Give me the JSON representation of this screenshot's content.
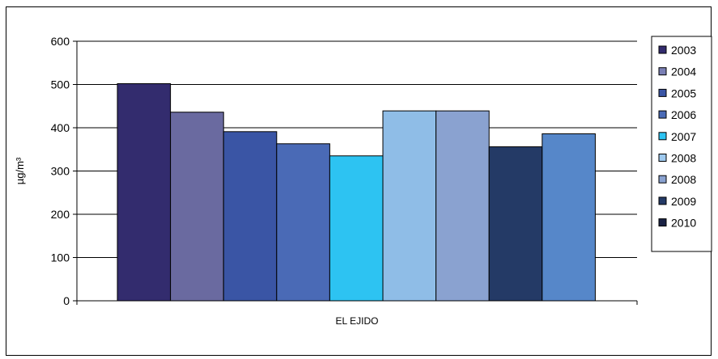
{
  "chart_data": {
    "type": "bar",
    "title": "",
    "xlabel": "",
    "ylabel": "µg/m³",
    "ylim": [
      0,
      600
    ],
    "yticks": [
      "0",
      "100",
      "200",
      "300",
      "400",
      "500",
      "600"
    ],
    "categories": [
      "EL EJIDO"
    ],
    "grid": true,
    "legend_position": "right",
    "series": [
      {
        "name": "2003",
        "values": [
          502
        ],
        "color": "#332c6e"
      },
      {
        "name": "2004",
        "values": [
          436
        ],
        "color": "#6a6aa0"
      },
      {
        "name": "2005",
        "values": [
          391
        ],
        "color": "#3a55a5"
      },
      {
        "name": "2006",
        "values": [
          363
        ],
        "color": "#4a6ab6"
      },
      {
        "name": "2007",
        "values": [
          335
        ],
        "color": "#2dc3f2"
      },
      {
        "name": "2008",
        "values": [
          439
        ],
        "color": "#8fbde7"
      },
      {
        "name": "2008",
        "values": [
          439
        ],
        "color": "#8aa2d0"
      },
      {
        "name": "2009",
        "values": [
          356
        ],
        "color": "#243a66"
      },
      {
        "name": "2010",
        "values": [
          386
        ],
        "color": "#5687c9"
      }
    ],
    "legend_colors": [
      "#332c6e",
      "#7a7fb5",
      "#3a55a5",
      "#4a6ab6",
      "#2dc3f2",
      "#9ec9ee",
      "#8aa2d0",
      "#243a66",
      "#1a2244"
    ]
  }
}
